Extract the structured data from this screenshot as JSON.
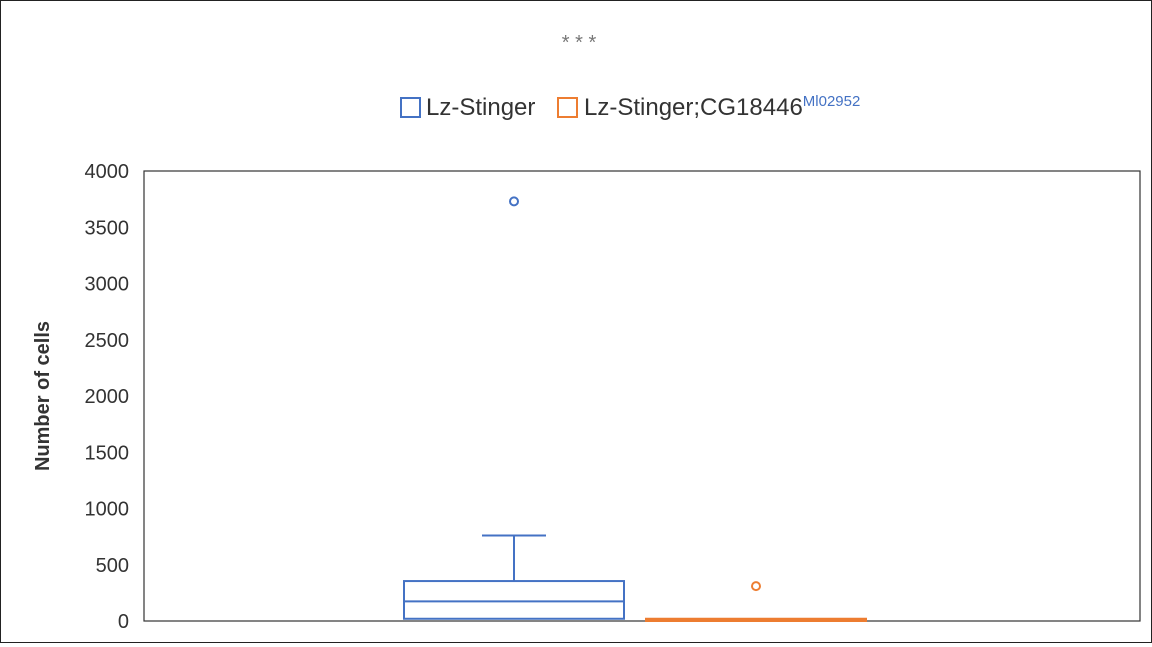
{
  "chart_data": {
    "type": "box",
    "significance": "* * *",
    "ylabel": "Number of cells",
    "xlabel": "",
    "ylim": [
      0,
      4000
    ],
    "yticks": [
      0,
      500,
      1000,
      1500,
      2000,
      2500,
      3000,
      3500,
      4000
    ],
    "grid": false,
    "legend_position": "top-center",
    "series": [
      {
        "name": "Lz-Stinger",
        "legend_text": "Lz-Stinger",
        "color": "#4472c4",
        "min": 20,
        "q1": 20,
        "median": 175,
        "q3": 355,
        "max": 760,
        "outliers": [
          3730
        ]
      },
      {
        "name": "Lz-Stinger;CG18446 Ml02952",
        "legend_text": "Lz-Stinger;CG18446",
        "legend_superscript": "Ml02952",
        "color": "#ed7d31",
        "min": 0,
        "q1": 0,
        "median": 10,
        "q3": 20,
        "max": 20,
        "outliers": [
          310
        ]
      }
    ]
  }
}
